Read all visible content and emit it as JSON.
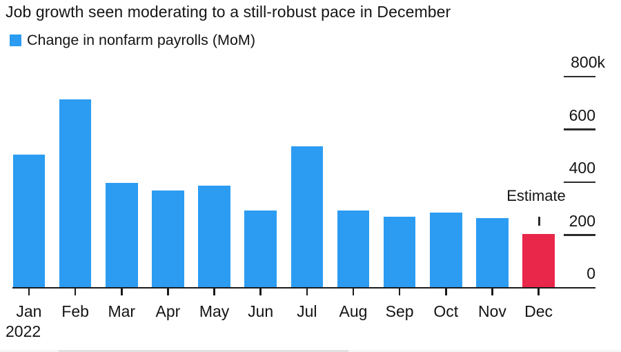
{
  "title": "Job growth seen moderating to a still-robust pace in December",
  "legend": {
    "label": "Change in nonfarm payrolls (MoM)",
    "swatch_color": "#2b9cf2"
  },
  "annotation": {
    "estimate_label": "Estimate"
  },
  "x_axis": {
    "year_label": "2022"
  },
  "colors": {
    "bar_blue": "#2b9cf2",
    "bar_red": "#e9274a",
    "axis": "#1b1b1b",
    "text": "#141414"
  },
  "chart_data": {
    "type": "bar",
    "title": "Job growth seen moderating to a still-robust pace in December",
    "series_name": "Change in nonfarm payrolls (MoM)",
    "categories": [
      "Jan",
      "Feb",
      "Mar",
      "Apr",
      "May",
      "Jun",
      "Jul",
      "Aug",
      "Sep",
      "Oct",
      "Nov",
      "Dec"
    ],
    "values": [
      504,
      714,
      398,
      368,
      386,
      293,
      537,
      292,
      269,
      284,
      263,
      203
    ],
    "value_unit": "k",
    "xlabel": "2022",
    "ylabel": "",
    "ylim": [
      0,
      800
    ],
    "y_ticks": [
      0,
      200,
      400,
      600,
      800
    ],
    "y_tick_labels": [
      "0",
      "200",
      "400",
      "600",
      "800k"
    ],
    "axis_side": "right",
    "grid": false,
    "legend_position": "top-left",
    "bar_colors": [
      "#2b9cf2",
      "#2b9cf2",
      "#2b9cf2",
      "#2b9cf2",
      "#2b9cf2",
      "#2b9cf2",
      "#2b9cf2",
      "#2b9cf2",
      "#2b9cf2",
      "#2b9cf2",
      "#2b9cf2",
      "#e9274a"
    ],
    "highlight": {
      "category": "Dec",
      "label": "Estimate",
      "color": "#e9274a"
    }
  }
}
